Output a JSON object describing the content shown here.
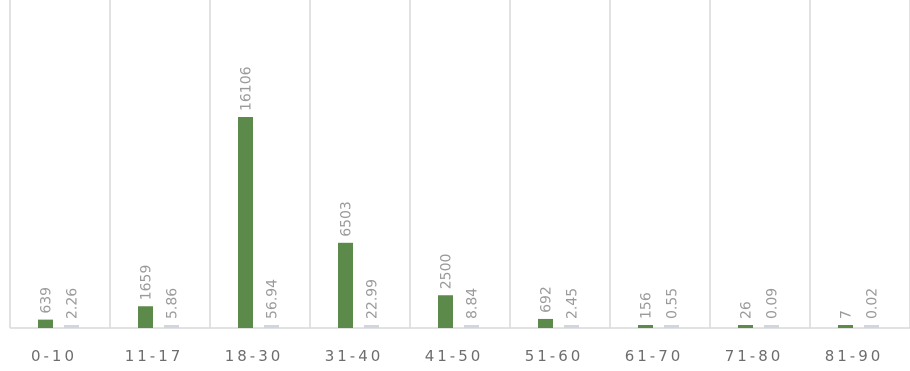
{
  "chart_data": {
    "type": "bar",
    "categories": [
      "0-10",
      "11-17",
      "18-30",
      "31-40",
      "41-50",
      "51-60",
      "61-70",
      "71-80",
      "81-90"
    ],
    "series": [
      {
        "values": [
          639,
          1659,
          16106,
          6503,
          2500,
          692,
          156,
          26,
          7
        ],
        "value_labels": [
          "639",
          "1659",
          "16106",
          "6503",
          "2500",
          "692",
          "156",
          "26",
          "7"
        ],
        "color": "#5b8a4a"
      },
      {
        "values": [
          2.26,
          5.86,
          56.94,
          22.99,
          8.84,
          2.45,
          0.55,
          0.09,
          0.02
        ],
        "value_labels": [
          "2.26",
          "5.86",
          "56.94",
          "22.99",
          "8.84",
          "2.45",
          "0.55",
          "0.09",
          "0.02"
        ],
        "color": "#cfd6e0"
      }
    ],
    "ylim": [
      0,
      20000
    ],
    "grid": false,
    "legend": "none",
    "colors": {
      "label_text": "#9a9a9a",
      "category_text": "#6d6d6d",
      "separator": "#d9d9d9",
      "axis": "#d9d9d9"
    }
  }
}
